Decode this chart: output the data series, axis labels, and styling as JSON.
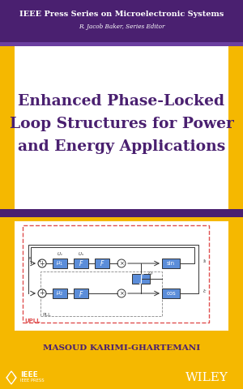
{
  "purple_dark": "#4a2070",
  "purple_mid": "#5a2d8a",
  "purple_light": "#6b3fa0",
  "yellow_bg": "#f5b800",
  "white": "#ffffff",
  "header_text1": "IEEE Press Series on Microelectronic Systems",
  "header_text2": "R. Jacob Baker, Series Editor",
  "title_line1": "Enhanced Phase-Locked",
  "title_line2": "Loop Structures for Power",
  "title_line3": "and Energy Applications",
  "author": "MASOUD KARIMI-GHARTEMANI",
  "diagram_border": "#e05050",
  "block_color": "#5b8dd9",
  "dark_text": "#222222"
}
